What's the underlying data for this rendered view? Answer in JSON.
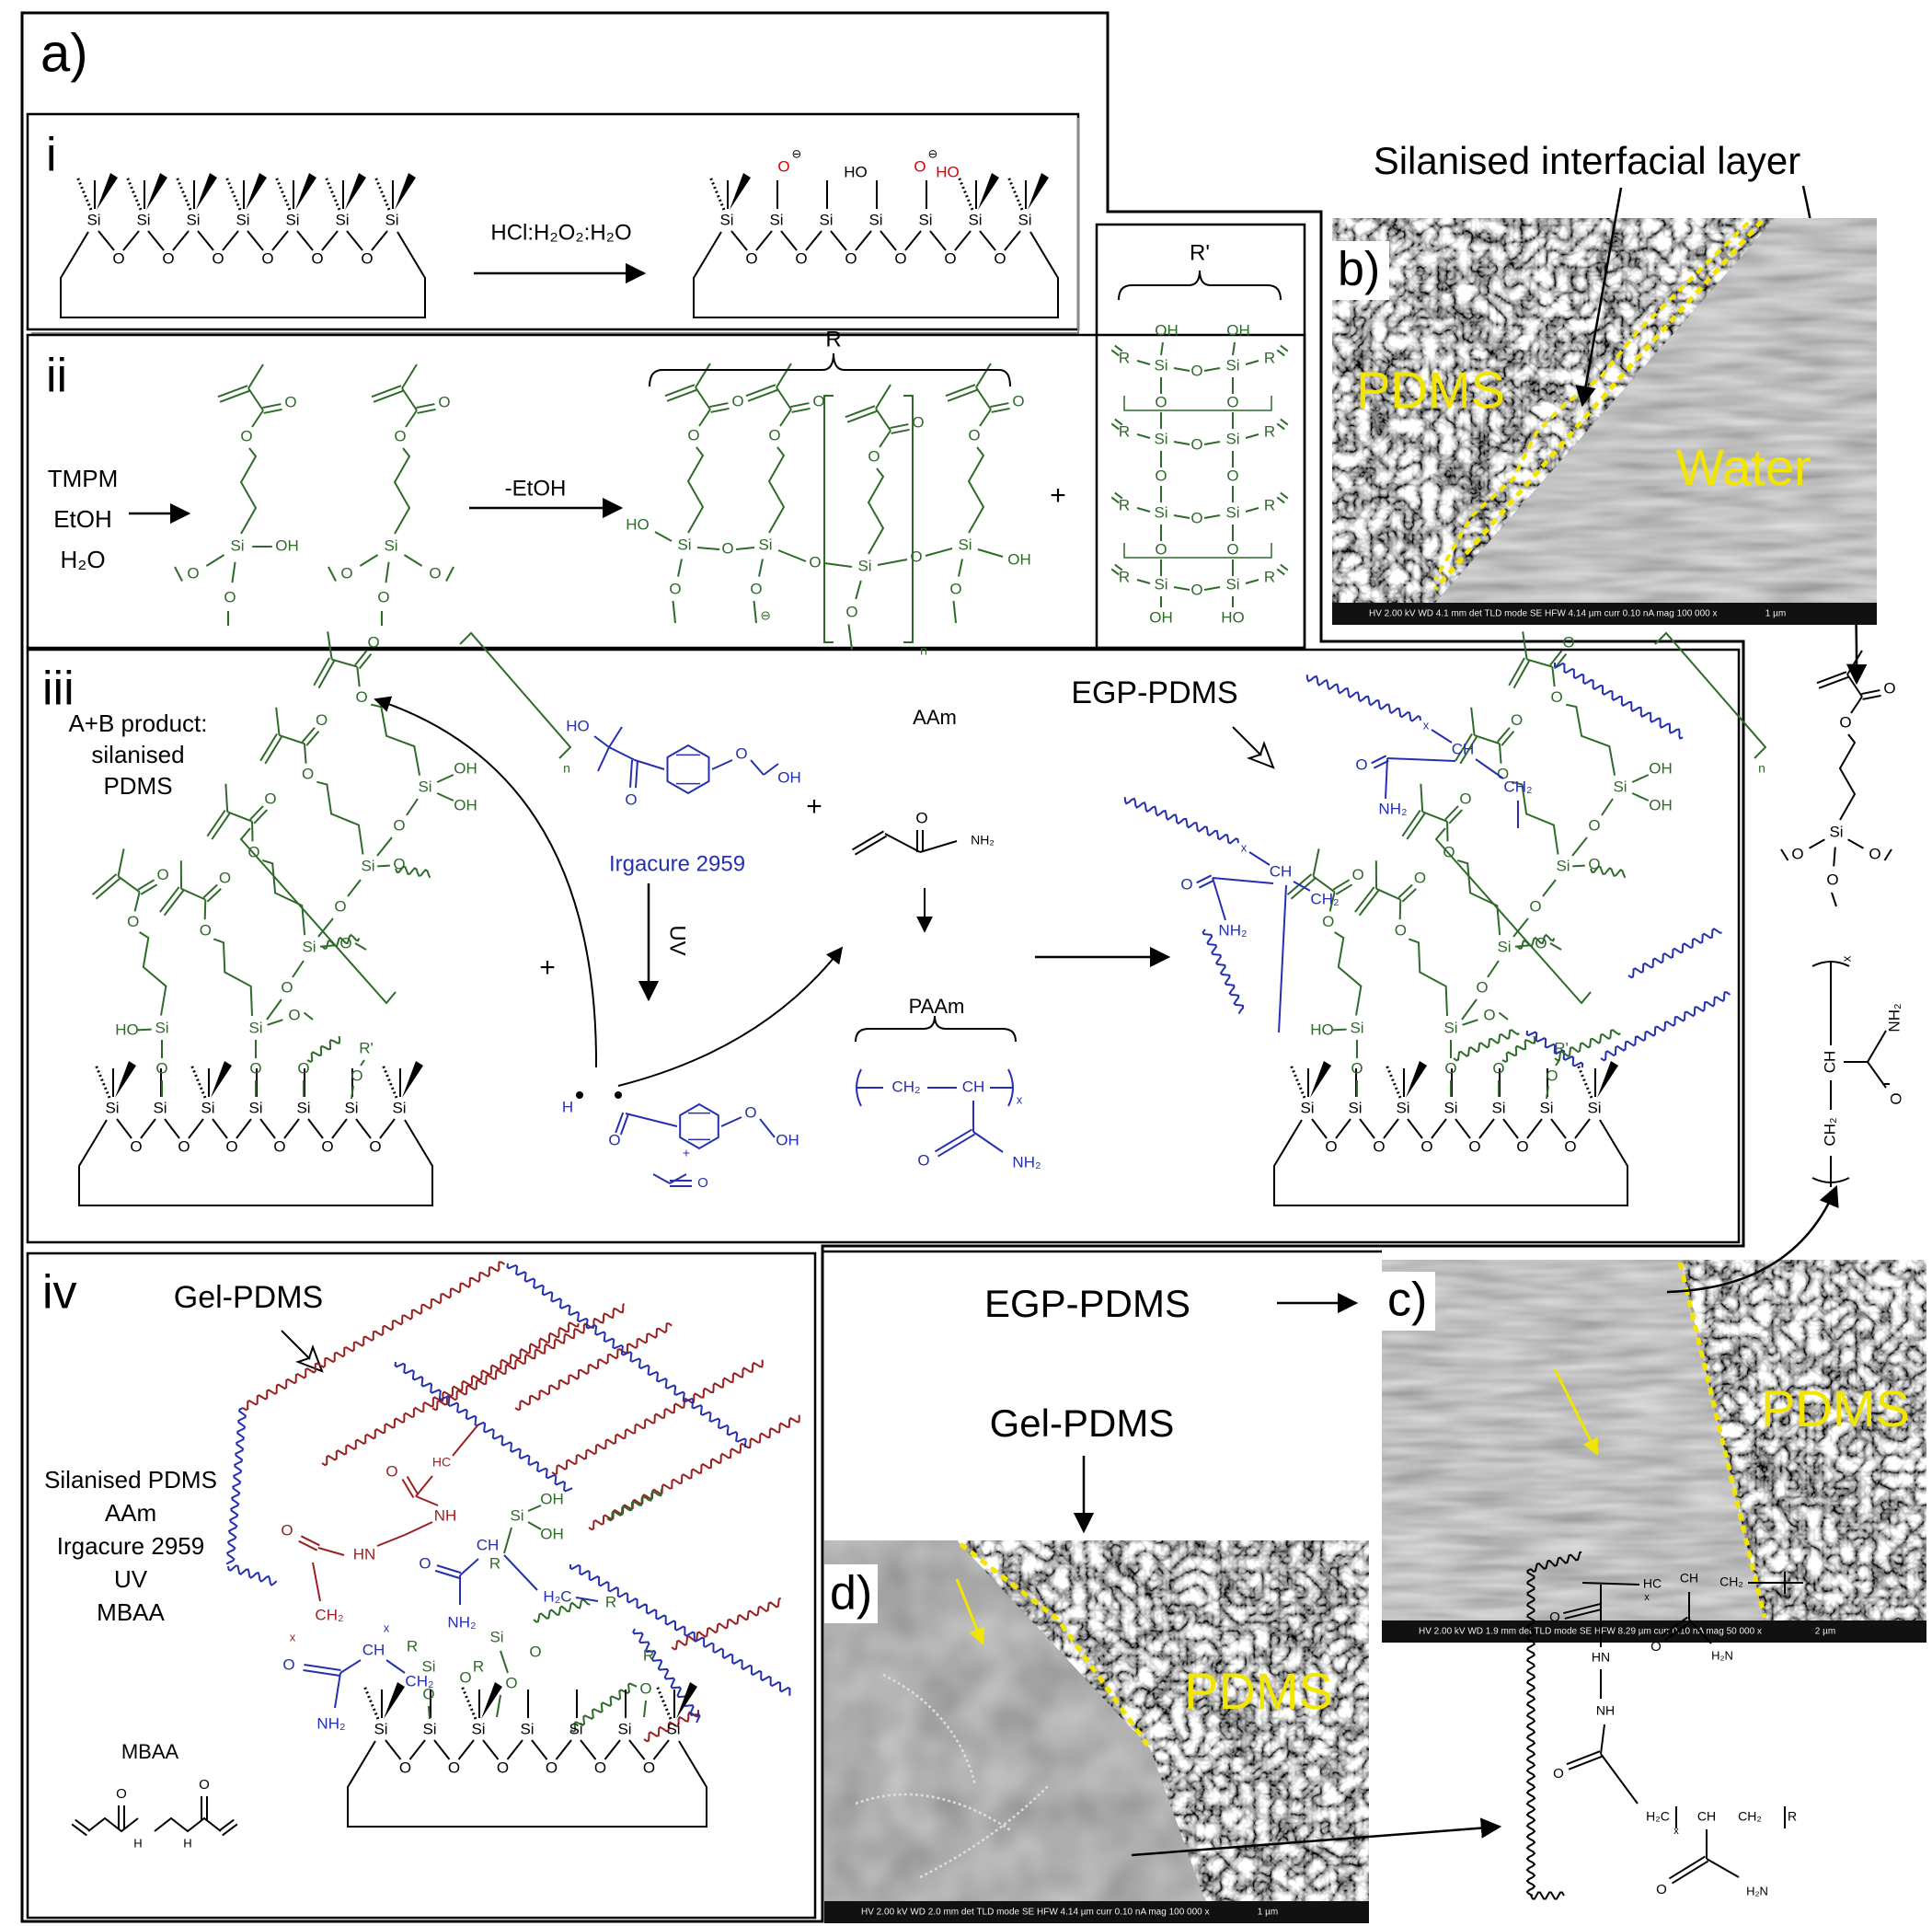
{
  "figure": {
    "panel_labels": {
      "a": "a)",
      "b": "b)",
      "c": "c)",
      "d": "d)"
    },
    "step_labels": {
      "i": "i",
      "ii": "ii",
      "iii": "iii",
      "iv": "iv"
    },
    "atoms": {
      "si": "Si",
      "o": "O",
      "oh": "OH",
      "ho": "HO",
      "minus": "⊖",
      "r": "R",
      "r1": "R'",
      "n": "n",
      "x": "x",
      "ch": "CH",
      "ch2": "CH₂",
      "h2c": "H₂C",
      "hc": "HC",
      "nh2": "NH₂",
      "h2n": "H₂N",
      "nh": "NH",
      "hn": "HN",
      "h": "H",
      "plus": "+"
    },
    "step_i": {
      "reagent": "HCl:H₂O₂:H₂O"
    },
    "step_ii": {
      "reagents": [
        "TMPM",
        "EtOH",
        "H₂O"
      ],
      "byproduct": "-EtOH",
      "oligomer_bracket": "R",
      "cage_bracket": "R'",
      "plus": "+"
    },
    "step_iii": {
      "start": [
        "A+B product:",
        "silanised",
        "PDMS"
      ],
      "initiator": "Irgacure 2959",
      "uv": "UV",
      "monomer": "AAm",
      "polymer": "PAAm",
      "product": "EGP-PDMS",
      "plus": "+"
    },
    "step_iv": {
      "product": "Gel-PDMS",
      "conditions": [
        "Silanised PDMS",
        "AAm",
        "Irgacure 2959",
        "UV",
        "MBAA"
      ],
      "crosslinker": "MBAA"
    },
    "sem_b": {
      "callout": "Silanised interfacial layer",
      "left_label": "PDMS",
      "right_label": "Water",
      "info": "HV 2.00 kV   WD 4.1 mm   det TLD   mode SE   HFW 4.14 µm   curr 0.10 nA   mag 100 000 x",
      "scale": "1 µm"
    },
    "sem_c": {
      "callout": "EGP-PDMS",
      "label": "PDMS",
      "info": "HV 2.00 kV   WD 1.9 mm   det TLD   mode SE   HFW 8.29 µm   curr 0.10 nA   mag 50 000 x",
      "scale": "2 µm"
    },
    "sem_d": {
      "callout": "Gel-PDMS",
      "label": "PDMS",
      "info": "HV 2.00 kV   WD 2.0 mm   det TLD   mode SE   HFW 4.14 µm   curr 0.10 nA   mag 100 000 x",
      "scale": "1 µm"
    }
  }
}
